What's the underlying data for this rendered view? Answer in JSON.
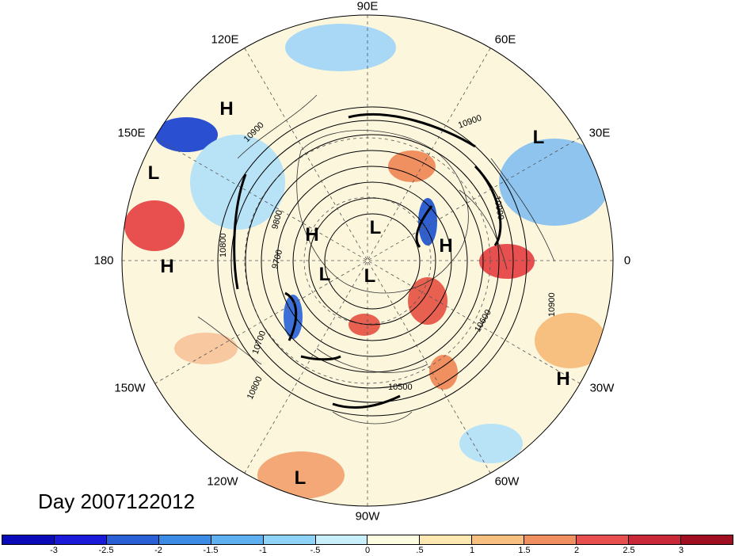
{
  "date_label": "Day 2007122012",
  "longitude_labels": {
    "n": "90E",
    "ne": "60E",
    "ene": "30E",
    "e": "0",
    "ese": "30W",
    "se": "60W",
    "s": "90W",
    "sw": "120W",
    "wsw": "150W",
    "w": "180",
    "wnw": "150E",
    "nw": "120E"
  },
  "pressure_centers": [
    "H",
    "L",
    "L",
    "H",
    "L",
    "H",
    "L",
    "L",
    "H",
    "H",
    "L",
    "H"
  ],
  "contour_labels": [
    "10900",
    "10900",
    "10900",
    "10800",
    "9800",
    "9700",
    "10700",
    "10800",
    "10600",
    "10900",
    "10500"
  ],
  "colorbar": {
    "ticks": [
      "-3",
      "-2.5",
      "-2",
      "-1.5",
      "-1",
      "-.5",
      "0",
      ".5",
      "1",
      "1.5",
      "2",
      "2.5",
      "3"
    ],
    "colors": [
      "#1a1ad8",
      "#2a5fd6",
      "#3c8ce6",
      "#5fb0f0",
      "#8fd4f8",
      "#c8f0fc",
      "#fcfce0",
      "#fce8b0",
      "#f8c080",
      "#f09060",
      "#e85050",
      "#c82838",
      "#a01020"
    ]
  }
}
